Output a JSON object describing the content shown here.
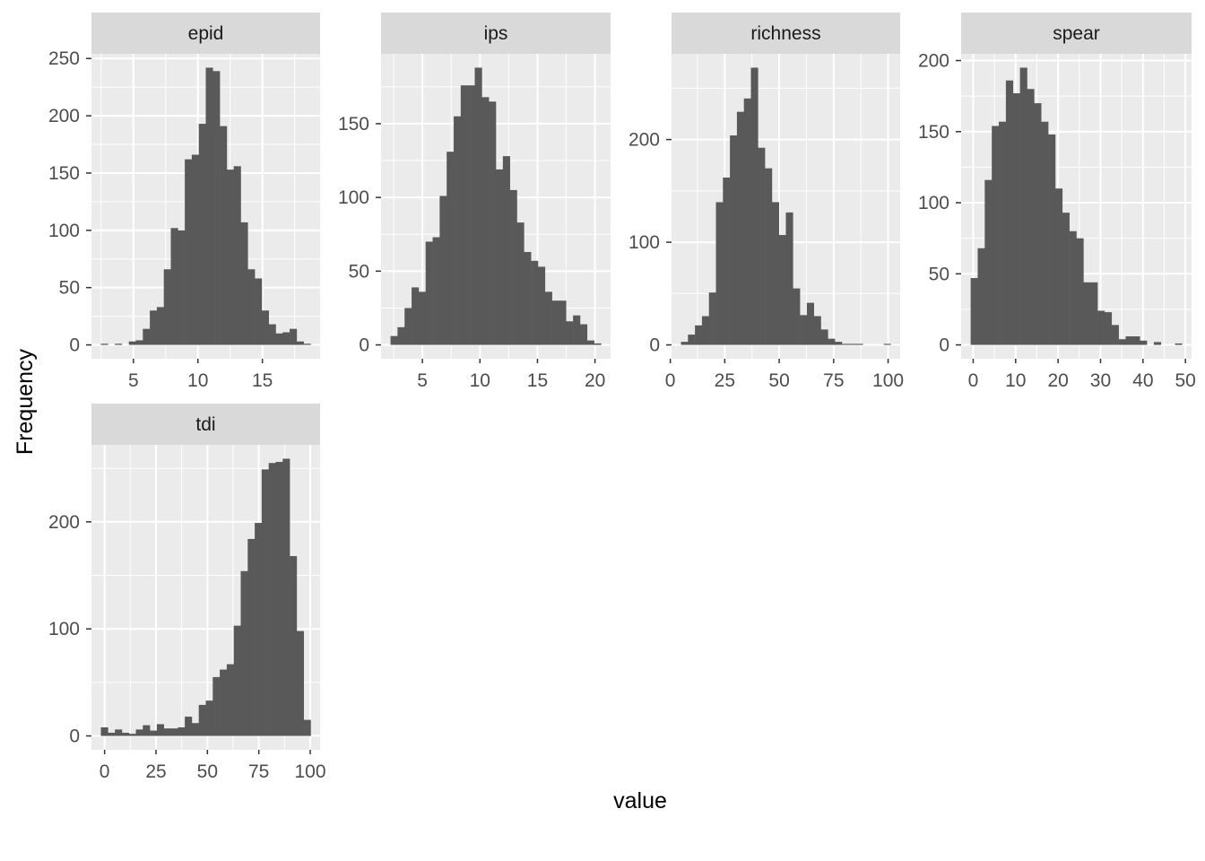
{
  "chart_data": {
    "type": "bar",
    "subtype": "faceted-histogram",
    "xlabel": "value",
    "ylabel": "Frequency",
    "colors": {
      "bar": "#595959",
      "panel": "#ebebeb",
      "strip": "#d9d9d9",
      "grid": "#ffffff"
    },
    "panels": [
      {
        "title": "epid",
        "bin_start": 2.48,
        "bin_width": 0.542,
        "counts": [
          1,
          0,
          1,
          0,
          3,
          4,
          14,
          30,
          33,
          66,
          102,
          100,
          162,
          166,
          193,
          242,
          239,
          191,
          153,
          156,
          107,
          66,
          58,
          30,
          18,
          10,
          11,
          14,
          3,
          1
        ],
        "xticks": [
          5,
          10,
          15
        ],
        "yticks": [
          0,
          50,
          100,
          150,
          200,
          250
        ]
      },
      {
        "title": "ips",
        "bin_start": 2.23,
        "bin_width": 0.61,
        "counts": [
          6,
          12,
          25,
          39,
          36,
          70,
          73,
          101,
          131,
          155,
          176,
          176,
          188,
          168,
          165,
          119,
          128,
          105,
          83,
          63,
          57,
          53,
          36,
          30,
          30,
          16,
          20,
          14,
          3,
          1
        ],
        "xticks": [
          5,
          10,
          15,
          20
        ],
        "yticks": [
          0,
          50,
          100,
          150
        ]
      },
      {
        "title": "richness",
        "bin_start": 4.9,
        "bin_width": 3.21,
        "counts": [
          3,
          10,
          19,
          28,
          51,
          139,
          163,
          204,
          227,
          240,
          270,
          192,
          172,
          139,
          107,
          129,
          55,
          29,
          41,
          28,
          15,
          6,
          3,
          1,
          1,
          1,
          0,
          0,
          0,
          1
        ],
        "xticks": [
          0,
          25,
          50,
          75,
          100
        ],
        "yticks": [
          0,
          100,
          200
        ]
      },
      {
        "title": "spear",
        "bin_start": -0.6,
        "bin_width": 1.66,
        "counts": [
          47,
          68,
          116,
          154,
          157,
          186,
          177,
          195,
          180,
          170,
          157,
          148,
          110,
          93,
          80,
          75,
          44,
          44,
          24,
          23,
          14,
          4,
          6,
          6,
          3,
          0,
          2,
          0,
          0,
          1
        ],
        "xticks": [
          0,
          10,
          20,
          30,
          40,
          50
        ],
        "yticks": [
          0,
          50,
          100,
          150,
          200
        ]
      },
      {
        "title": "tdi",
        "bin_start": -1.8,
        "bin_width": 3.4,
        "counts": [
          8,
          3,
          6,
          3,
          2,
          6,
          10,
          5,
          11,
          7,
          7,
          8,
          18,
          12,
          29,
          33,
          55,
          62,
          67,
          103,
          154,
          184,
          199,
          249,
          255,
          256,
          259,
          168,
          98,
          15
        ],
        "xticks": [
          0,
          25,
          50,
          75,
          100
        ],
        "yticks": [
          0,
          100,
          200
        ]
      }
    ]
  }
}
